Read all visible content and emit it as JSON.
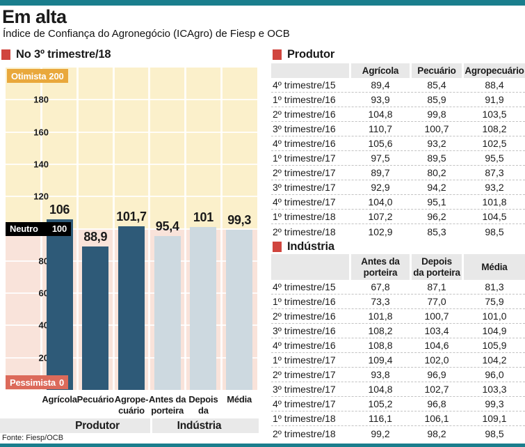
{
  "header": {
    "title": "Em alta",
    "subtitle": "Índice de Confiança do Agronegócio (ICAgro) de Fiesp e OCB"
  },
  "source": "Fonte: Fiesp/OCB",
  "colors": {
    "teal": "#1a7e8d",
    "red": "#d0453e",
    "cream": "#fbf0cb",
    "pink": "#f9e3da",
    "bar_dark": "#2e5a78",
    "bar_light": "#cdd9e0",
    "amber": "#e9a83c",
    "salmon": "#dc6a5a",
    "gray": "#e8e8e8"
  },
  "chart": {
    "section_title": "No 3º trimestre/18",
    "otimista_text": "Otimista",
    "otimista_value": "200",
    "neutro_text": "Neutro",
    "neutro_value": "100",
    "pessimista_text": "Pessimista",
    "pessimista_value": "0",
    "y_ticks": [
      "180",
      "160",
      "140",
      "120",
      "80",
      "60",
      "40",
      "20"
    ],
    "group_labels": [
      "Produtor",
      "Indústria"
    ]
  },
  "chart_data": {
    "type": "bar",
    "title": "No 3º trimestre/18",
    "categories": [
      "Agrícola",
      "Pecuário",
      "Agropecuário",
      "Antes da porteira",
      "Depois da porteira",
      "Média"
    ],
    "category_lines": [
      "Agrícola",
      "Pecuário",
      "Agrope-\ncuário",
      "Antes da\nporteira",
      "Depois da\nporteira",
      "Média"
    ],
    "values": [
      106,
      88.9,
      101.7,
      95.4,
      101,
      99.3
    ],
    "value_labels": [
      "106",
      "88,9",
      "101,7",
      "95,4",
      "101",
      "99,3"
    ],
    "groups": [
      {
        "name": "Produtor",
        "indices": [
          0,
          1,
          2
        ],
        "color": "#2e5a78"
      },
      {
        "name": "Indústria",
        "indices": [
          3,
          4,
          5
        ],
        "color": "#cdd9e0"
      }
    ],
    "ylim": [
      0,
      200
    ],
    "y_tick_step": 20,
    "reference_lines": [
      {
        "label": "Otimista",
        "value": 200
      },
      {
        "label": "Neutro",
        "value": 100
      },
      {
        "label": "Pessimista",
        "value": 0
      }
    ],
    "grid": true,
    "legend": "none"
  },
  "tables": [
    {
      "title": "Produtor",
      "columns": [
        "",
        "Agrícola",
        "Pecuário",
        "Agropecuário"
      ],
      "rows": [
        [
          "4º trimestre/15",
          "89,4",
          "85,4",
          "88,4"
        ],
        [
          "1º trimestre/16",
          "93,9",
          "85,9",
          "91,9"
        ],
        [
          "2º trimestre/16",
          "104,8",
          "99,8",
          "103,5"
        ],
        [
          "3º trimestre/16",
          "110,7",
          "100,7",
          "108,2"
        ],
        [
          "4º trimestre/16",
          "105,6",
          "93,2",
          "102,5"
        ],
        [
          "1º trimestre/17",
          "97,5",
          "89,5",
          "95,5"
        ],
        [
          "2º trimestre/17",
          "89,7",
          "80,2",
          "87,3"
        ],
        [
          "3º trimestre/17",
          "92,9",
          "94,2",
          "93,2"
        ],
        [
          "4º trimestre/17",
          "104,0",
          "95,1",
          "101,8"
        ],
        [
          "1º trimestre/18",
          "107,2",
          "96,2",
          "104,5"
        ],
        [
          "2º trimestre/18",
          "102,9",
          "85,3",
          "98,5"
        ]
      ]
    },
    {
      "title": "Indústria",
      "columns": [
        "",
        "Antes da\nporteira",
        "Depois\nda porteira",
        "Média"
      ],
      "rows": [
        [
          "4º trimestre/15",
          "67,8",
          "87,1",
          "81,3"
        ],
        [
          "1º trimestre/16",
          "73,3",
          "77,0",
          "75,9"
        ],
        [
          "2º trimestre/16",
          "101,8",
          "100,7",
          "101,0"
        ],
        [
          "3º trimestre/16",
          "108,2",
          "103,4",
          "104,9"
        ],
        [
          "4º trimestre/16",
          "108,8",
          "104,6",
          "105,9"
        ],
        [
          "1º trimestre/17",
          "109,4",
          "102,0",
          "104,2"
        ],
        [
          "2º trimestre/17",
          "93,8",
          "96,9",
          "96,0"
        ],
        [
          "3º trimestre/17",
          "104,8",
          "102,7",
          "103,3"
        ],
        [
          "4º trimestre/17",
          "105,2",
          "96,8",
          "99,3"
        ],
        [
          "1º trimestre/18",
          "116,1",
          "106,1",
          "109,1"
        ],
        [
          "2º trimestre/18",
          "99,2",
          "98,2",
          "98,5"
        ]
      ]
    }
  ]
}
